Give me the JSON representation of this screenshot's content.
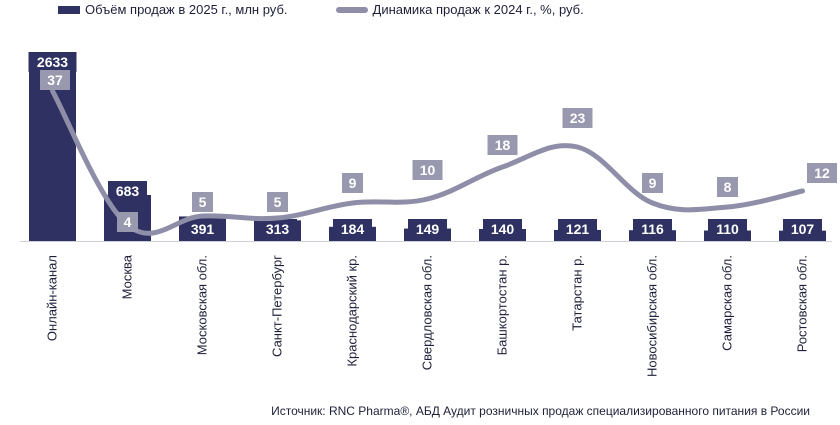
{
  "colors": {
    "bar": "#2e3162",
    "line": "#8e8ea8",
    "line_label_bg": "#9898ae",
    "text": "#1f1f3a"
  },
  "legend": {
    "bar_label": "Объём продаж в 2025 г., млн руб.",
    "line_label": "Динамика продаж к 2024 г., %, руб."
  },
  "source": "Источник: RNC Pharma®, АБД Аудит розничных продаж специализированного питания в России",
  "chart_data": {
    "type": "bar",
    "categories": [
      "Онлайн-канал",
      "Москва",
      "Московская обл.",
      "Санкт-Петербург",
      "Краснодарский кр.",
      "Свердловская обл.",
      "Башкортостан р.",
      "Татарстан р.",
      "Новосибирская обл.",
      "Самарская обл.",
      "Ростовская обл."
    ],
    "series": [
      {
        "name": "Объём продаж в 2025 г., млн руб.",
        "type": "bar",
        "values": [
          2633,
          683,
          391,
          313,
          184,
          149,
          140,
          121,
          116,
          110,
          107
        ]
      },
      {
        "name": "Динамика продаж к 2024 г., %, руб.",
        "type": "line",
        "values": [
          37,
          4,
          5,
          5,
          9,
          10,
          18,
          23,
          9,
          8,
          12
        ]
      }
    ],
    "legend_position": "top-left",
    "grid": false
  }
}
